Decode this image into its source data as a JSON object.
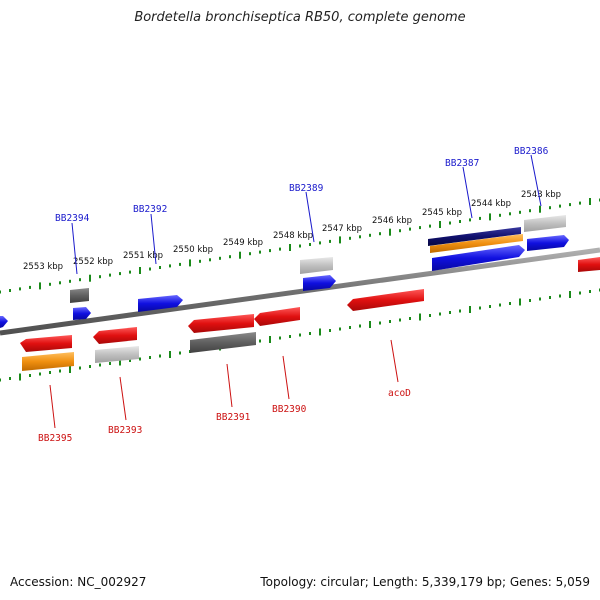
{
  "title": "Bordetella bronchiseptica RB50, complete genome",
  "accession_text": "Accession: NC_002927",
  "topology_text": "Topology: circular; Length: 5,339,179 bp; Genes: 5,059",
  "scale_labels": [
    "2543 kbp",
    "2544 kbp",
    "2545 kbp",
    "2546 kbp",
    "2547 kbp",
    "2548 kbp",
    "2549 kbp",
    "2550 kbp",
    "2551 kbp",
    "2552 kbp",
    "2553 kbp"
  ],
  "top_gene_labels": [
    "BB2386",
    "BB2387",
    "BB2389",
    "BB2392",
    "BB2394"
  ],
  "bottom_gene_labels": [
    "acoD",
    "BB2390",
    "BB2391",
    "BB2393",
    "BB2395"
  ],
  "colors": {
    "forward_cds": "#1010e0",
    "reverse_cds": "#e01010",
    "dark_feature": "#606060",
    "light_feature": "#c0c0c0",
    "orange_feature": "#f09010",
    "navy_feature": "#10106e",
    "backbone": "#7a7a7a",
    "tick": "#1a8a1a"
  }
}
